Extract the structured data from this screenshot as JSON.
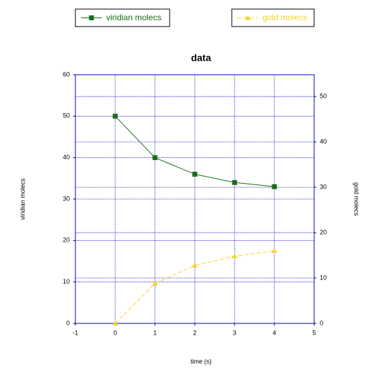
{
  "chart_data": {
    "type": "line",
    "title": "data",
    "x_label": "time (s)",
    "y_label": "viridian molecs",
    "y2_label": "gold molecs",
    "x": [
      0,
      1,
      2,
      3,
      4
    ],
    "series": [
      {
        "name": "viridian molecs",
        "color": "#1a6b1a",
        "marker": "square",
        "dash": "solid",
        "values": [
          50,
          40,
          36,
          34,
          33
        ]
      },
      {
        "name": "gold molecs",
        "color": "#f5d42a",
        "marker": "triangle",
        "dash": "dashed",
        "axis": "y2",
        "values": [
          0,
          8.8,
          12.8,
          14.8,
          16.0
        ]
      }
    ],
    "xlim": [
      -1,
      5
    ],
    "xticks": [
      -1,
      0,
      1,
      2,
      3,
      4,
      5
    ],
    "ylim": [
      0,
      60
    ],
    "yticks": [
      0,
      10,
      20,
      30,
      40,
      50,
      60
    ],
    "y2lim": [
      0,
      54.8
    ],
    "y2ticks": [
      0,
      10,
      20,
      30,
      40,
      50
    ],
    "grid": true,
    "legend": "top"
  }
}
